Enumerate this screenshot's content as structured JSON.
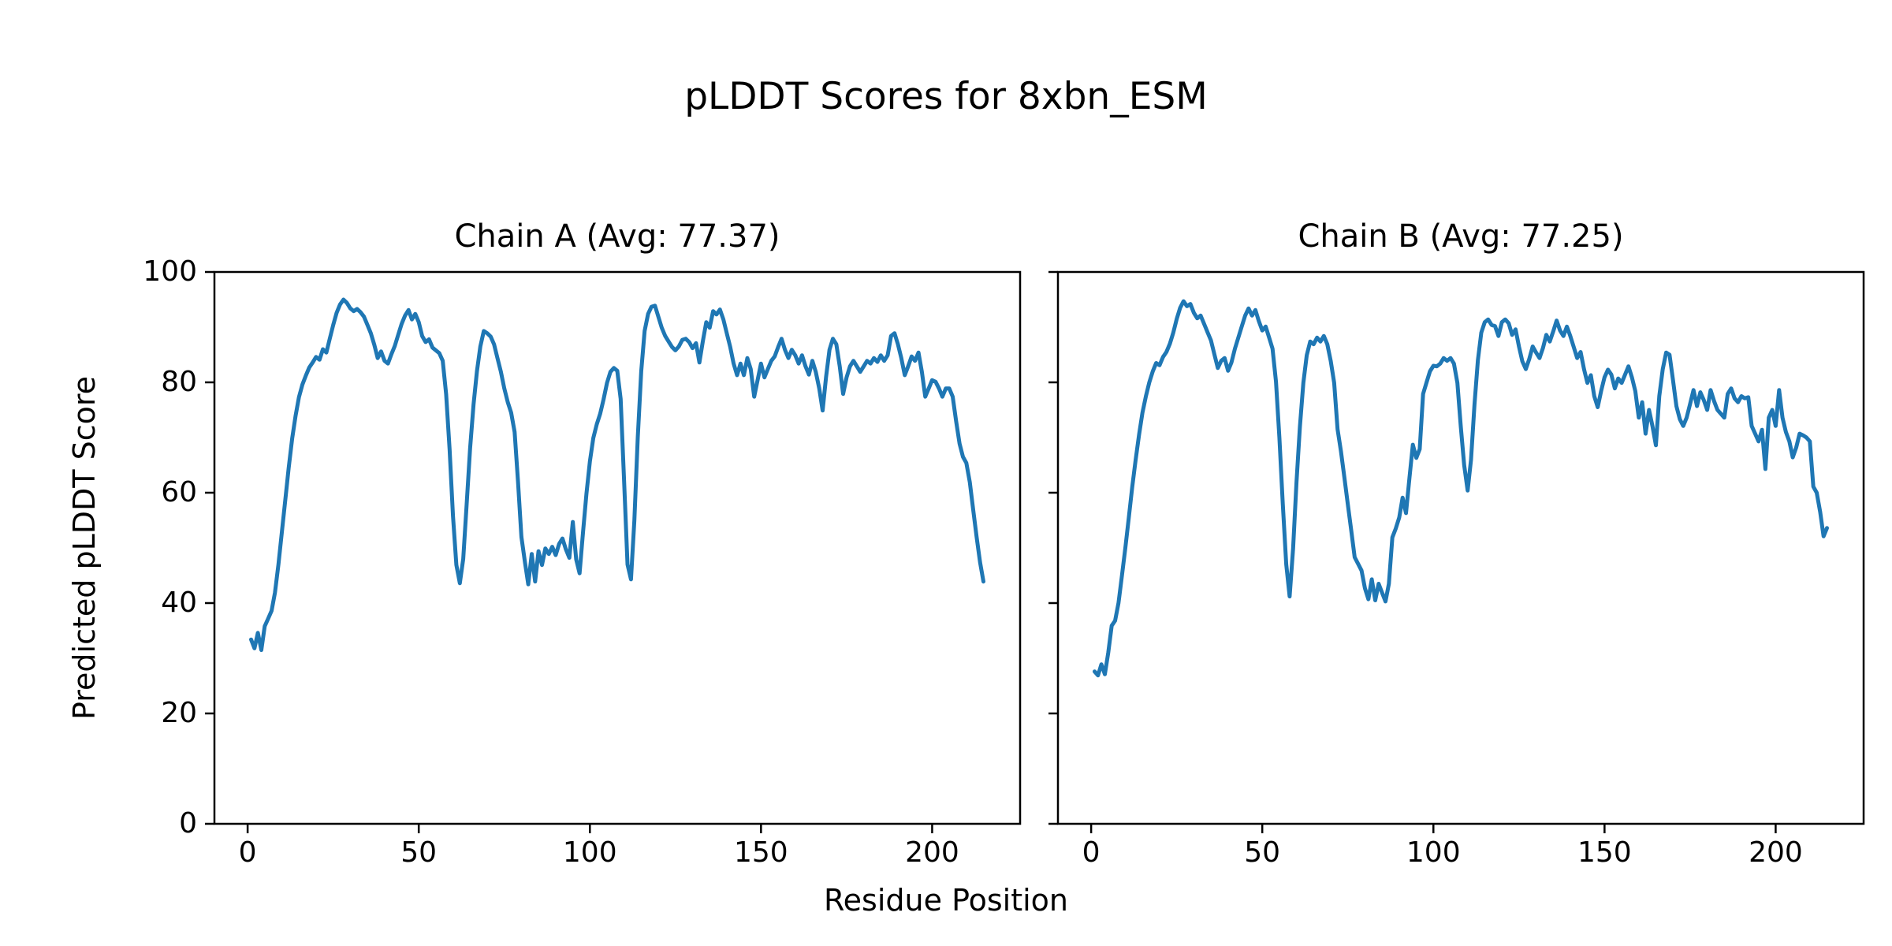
{
  "figure": {
    "title": "pLDDT Scores for 8xbn_ESM",
    "xlabel": "Residue Position",
    "ylabel": "Predicted pLDDT Score",
    "background_color": "#ffffff",
    "line_color": "#1f77b4",
    "spine_color": "#000000",
    "text_color": "#000000"
  },
  "chart_data": [
    {
      "type": "line",
      "title": "Chain A (Avg: 77.37)",
      "chain": "A",
      "avg": 77.37,
      "xlabel": "Residue Position",
      "ylabel": "Predicted pLDDT Score",
      "xlim": [
        -9.7,
        225.7
      ],
      "ylim": [
        0,
        100
      ],
      "xticks": [
        0,
        50,
        100,
        150,
        200
      ],
      "yticks": [
        0,
        20,
        40,
        60,
        80,
        100
      ],
      "show_ytick_labels": true,
      "grid": false,
      "legend": "none",
      "line_color": "#1f77b4",
      "x_start": 1,
      "values": [
        33.4,
        31.8,
        34.6,
        31.5,
        35.8,
        37.2,
        38.6,
        41.9,
        47.0,
        52.8,
        58.7,
        64.5,
        69.8,
        73.9,
        77.3,
        79.6,
        81.2,
        82.7,
        83.6,
        84.6,
        84.1,
        86.0,
        85.4,
        87.9,
        90.4,
        92.6,
        94.1,
        95.0,
        94.4,
        93.4,
        92.9,
        93.3,
        92.7,
        91.9,
        90.4,
        88.9,
        86.8,
        84.4,
        85.6,
        83.9,
        83.4,
        85.1,
        86.6,
        88.6,
        90.6,
        92.1,
        93.1,
        91.4,
        92.4,
        90.9,
        88.4,
        87.3,
        87.8,
        86.3,
        85.8,
        85.3,
        83.9,
        77.9,
        67.9,
        55.8,
        46.9,
        43.6,
        48.0,
        58.0,
        68.0,
        76.0,
        82.0,
        86.5,
        89.3,
        88.9,
        88.3,
        86.9,
        84.4,
        81.9,
        78.9,
        76.4,
        74.5,
        71.0,
        62.0,
        52.0,
        47.5,
        43.4,
        48.9,
        43.9,
        49.4,
        46.9,
        49.9,
        48.9,
        50.2,
        48.7,
        50.7,
        51.7,
        49.7,
        48.2,
        54.7,
        47.9,
        45.4,
        52.9,
        59.8,
        65.7,
        69.9,
        72.4,
        74.3,
        76.9,
        79.9,
        81.9,
        82.6,
        82.1,
        77.0,
        62.0,
        47.0,
        44.3,
        55.0,
        70.0,
        82.0,
        89.3,
        92.4,
        93.7,
        93.9,
        91.9,
        89.9,
        88.4,
        87.4,
        86.4,
        85.8,
        86.5,
        87.7,
        87.9,
        87.3,
        86.2,
        87.1,
        83.6,
        87.4,
        90.9,
        89.9,
        92.9,
        92.3,
        93.2,
        91.4,
        88.9,
        86.4,
        83.4,
        81.3,
        83.4,
        81.3,
        84.4,
        82.4,
        77.4,
        80.4,
        83.4,
        80.9,
        82.4,
        83.9,
        84.7,
        86.4,
        87.9,
        85.9,
        84.4,
        85.9,
        84.9,
        83.4,
        84.9,
        82.9,
        81.4,
        83.9,
        81.9,
        78.9,
        74.9,
        80.9,
        85.9,
        87.9,
        86.9,
        82.9,
        77.9,
        80.9,
        82.9,
        83.9,
        82.9,
        81.9,
        82.9,
        83.9,
        83.4,
        84.4,
        83.7,
        84.9,
        83.9,
        84.9,
        88.4,
        88.9,
        86.9,
        84.4,
        81.3,
        82.9,
        84.7,
        83.9,
        85.4,
        81.9,
        77.4,
        78.9,
        80.4,
        80.1,
        78.9,
        77.4,
        78.9,
        78.9,
        77.4,
        73.0,
        68.9,
        66.5,
        65.4,
        61.9,
        56.9,
        51.9,
        47.4,
        43.9
      ]
    },
    {
      "type": "line",
      "title": "Chain B (Avg: 77.25)",
      "chain": "B",
      "avg": 77.25,
      "xlabel": "Residue Position",
      "ylabel": "Predicted pLDDT Score",
      "xlim": [
        -9.7,
        225.7
      ],
      "ylim": [
        0,
        100
      ],
      "xticks": [
        0,
        50,
        100,
        150,
        200
      ],
      "yticks": [
        0,
        20,
        40,
        60,
        80,
        100
      ],
      "show_ytick_labels": false,
      "grid": false,
      "legend": "none",
      "line_color": "#1f77b4",
      "x_start": 1,
      "values": [
        27.6,
        26.9,
        28.9,
        27.1,
        31.0,
        35.9,
        36.8,
        40.0,
        45.0,
        50.0,
        55.5,
        61.0,
        66.0,
        70.5,
        74.5,
        77.5,
        80.0,
        82.0,
        83.5,
        83.1,
        84.6,
        85.5,
        87.0,
        89.0,
        91.5,
        93.5,
        94.7,
        93.8,
        94.2,
        92.6,
        91.6,
        92.1,
        90.6,
        89.1,
        87.6,
        85.1,
        82.6,
        83.9,
        84.4,
        82.1,
        83.6,
        86.1,
        88.1,
        90.1,
        92.1,
        93.4,
        92.1,
        93.1,
        91.1,
        89.4,
        90.1,
        88.1,
        86.1,
        80.1,
        70.0,
        58.0,
        47.0,
        41.2,
        49.9,
        61.9,
        71.9,
        79.9,
        84.9,
        87.4,
        86.9,
        88.1,
        87.4,
        88.4,
        86.9,
        83.9,
        79.9,
        71.5,
        67.5,
        62.7,
        57.9,
        53.1,
        48.3,
        47.1,
        45.9,
        42.7,
        40.7,
        44.3,
        40.5,
        43.5,
        41.9,
        40.3,
        43.5,
        51.9,
        53.5,
        55.5,
        59.1,
        56.3,
        62.7,
        68.7,
        66.3,
        67.9,
        77.9,
        80.0,
        82.0,
        83.0,
        82.9,
        83.4,
        84.4,
        83.9,
        84.4,
        83.4,
        79.9,
        72.0,
        65.0,
        60.4,
        66.0,
        76.0,
        84.0,
        89.0,
        90.9,
        91.4,
        90.4,
        90.2,
        88.4,
        90.9,
        91.4,
        90.7,
        88.6,
        89.6,
        86.5,
        83.8,
        82.4,
        84.2,
        86.5,
        85.4,
        84.4,
        86.2,
        88.6,
        87.4,
        89.2,
        91.2,
        89.4,
        88.4,
        90.1,
        88.4,
        86.4,
        84.4,
        85.5,
        82.4,
        79.9,
        81.3,
        77.5,
        75.5,
        78.4,
        80.9,
        82.3,
        81.4,
        78.9,
        80.7,
        79.9,
        81.4,
        82.9,
        80.9,
        78.4,
        73.6,
        76.4,
        70.7,
        75.0,
        72.1,
        68.6,
        77.5,
        82.4,
        85.4,
        85.0,
        80.4,
        75.7,
        73.3,
        72.1,
        73.6,
        76.1,
        78.6,
        75.7,
        78.2,
        76.8,
        75.0,
        78.6,
        76.6,
        75.0,
        74.3,
        73.6,
        77.9,
        78.9,
        77.1,
        76.4,
        77.5,
        77.1,
        77.3,
        72.1,
        70.7,
        69.3,
        71.4,
        64.3,
        73.6,
        75.0,
        72.1,
        78.6,
        73.6,
        71.0,
        69.3,
        66.4,
        68.2,
        70.7,
        70.4,
        70.0,
        69.3,
        61.1,
        60.0,
        56.5,
        52.1,
        53.6
      ]
    }
  ]
}
